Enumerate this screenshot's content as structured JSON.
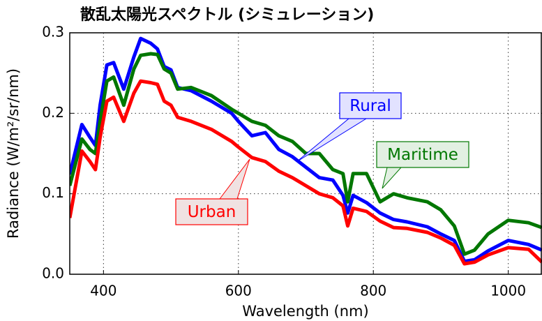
{
  "chart_data": {
    "type": "line",
    "title": "散乱太陽光スペクトル (シミュレーション)",
    "xlabel": "Wavelength (nm)",
    "ylabel": "Radiance (W/m²/sr/nm)",
    "x": [
      350,
      368,
      380,
      388,
      395,
      405,
      415,
      430,
      445,
      455,
      470,
      480,
      490,
      500,
      510,
      530,
      560,
      590,
      600,
      620,
      640,
      660,
      680,
      700,
      720,
      740,
      755,
      762,
      770,
      790,
      810,
      830,
      850,
      880,
      900,
      920,
      935,
      950,
      970,
      1000,
      1030,
      1050
    ],
    "series": [
      {
        "name": "Rural",
        "color": "#0000ff",
        "values": [
          0.124,
          0.186,
          0.17,
          0.16,
          0.21,
          0.26,
          0.263,
          0.23,
          0.27,
          0.293,
          0.287,
          0.28,
          0.258,
          0.254,
          0.232,
          0.228,
          0.215,
          0.2,
          0.19,
          0.172,
          0.176,
          0.155,
          0.146,
          0.133,
          0.12,
          0.117,
          0.098,
          0.076,
          0.098,
          0.089,
          0.076,
          0.068,
          0.065,
          0.059,
          0.05,
          0.042,
          0.016,
          0.018,
          0.029,
          0.042,
          0.037,
          0.03
        ]
      },
      {
        "name": "Maritime",
        "color": "#007700",
        "values": [
          0.11,
          0.168,
          0.155,
          0.15,
          0.19,
          0.24,
          0.245,
          0.21,
          0.255,
          0.272,
          0.274,
          0.273,
          0.255,
          0.25,
          0.23,
          0.232,
          0.222,
          0.205,
          0.2,
          0.19,
          0.185,
          0.172,
          0.165,
          0.15,
          0.15,
          0.13,
          0.125,
          0.09,
          0.125,
          0.125,
          0.09,
          0.1,
          0.095,
          0.09,
          0.08,
          0.06,
          0.025,
          0.03,
          0.05,
          0.067,
          0.064,
          0.058
        ]
      },
      {
        "name": "Urban",
        "color": "#ff0000",
        "values": [
          0.07,
          0.153,
          0.14,
          0.13,
          0.17,
          0.215,
          0.22,
          0.19,
          0.225,
          0.24,
          0.238,
          0.236,
          0.215,
          0.21,
          0.195,
          0.19,
          0.18,
          0.165,
          0.158,
          0.145,
          0.14,
          0.128,
          0.12,
          0.11,
          0.1,
          0.095,
          0.085,
          0.06,
          0.082,
          0.078,
          0.066,
          0.058,
          0.057,
          0.052,
          0.045,
          0.036,
          0.013,
          0.015,
          0.024,
          0.033,
          0.031,
          0.015
        ]
      }
    ],
    "xlim": [
      350,
      1050
    ],
    "xticks": [
      400,
      600,
      800,
      1000
    ],
    "ylim": [
      0,
      0.3
    ],
    "yticks": [
      {
        "value": 0,
        "label": "0.0"
      },
      0.1,
      0.2,
      0.3
    ],
    "grid": true
  }
}
